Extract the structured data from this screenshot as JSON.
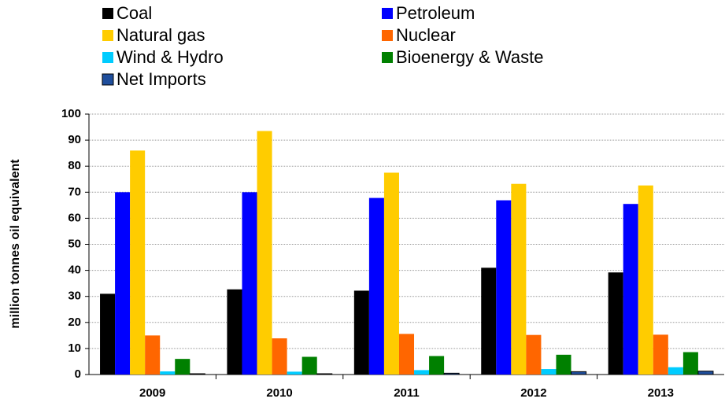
{
  "chart_data": {
    "type": "bar",
    "y_label": "million tonnes oil equivalent",
    "categories": [
      "2009",
      "2010",
      "2011",
      "2012",
      "2013"
    ],
    "series": [
      {
        "name": "Coal",
        "color": "#000000",
        "values": [
          31,
          32.7,
          32.2,
          41,
          39.2
        ]
      },
      {
        "name": "Petroleum",
        "color": "#0000ff",
        "values": [
          70,
          70,
          67.8,
          66.9,
          65.5
        ]
      },
      {
        "name": "Natural gas",
        "color": "#ffcc00",
        "values": [
          86,
          93.5,
          77.5,
          73.2,
          72.6
        ]
      },
      {
        "name": "Nuclear",
        "color": "#ff6600",
        "values": [
          15,
          13.9,
          15.6,
          15.2,
          15.3
        ]
      },
      {
        "name": "Wind & Hydro",
        "color": "#00ccff",
        "values": [
          1.2,
          1.1,
          1.7,
          2.1,
          2.8
        ]
      },
      {
        "name": "Bioenergy & Waste",
        "color": "#008000",
        "values": [
          6,
          6.8,
          7.1,
          7.6,
          8.6
        ]
      },
      {
        "name": "Net Imports",
        "color": "#1f4e9c",
        "values": [
          0.3,
          0.3,
          0.5,
          1.1,
          1.3
        ]
      }
    ],
    "ylim": [
      0,
      100
    ],
    "yticks": [
      0,
      10,
      20,
      30,
      40,
      50,
      60,
      70,
      80,
      90,
      100
    ],
    "grid": true,
    "legend": "top"
  }
}
